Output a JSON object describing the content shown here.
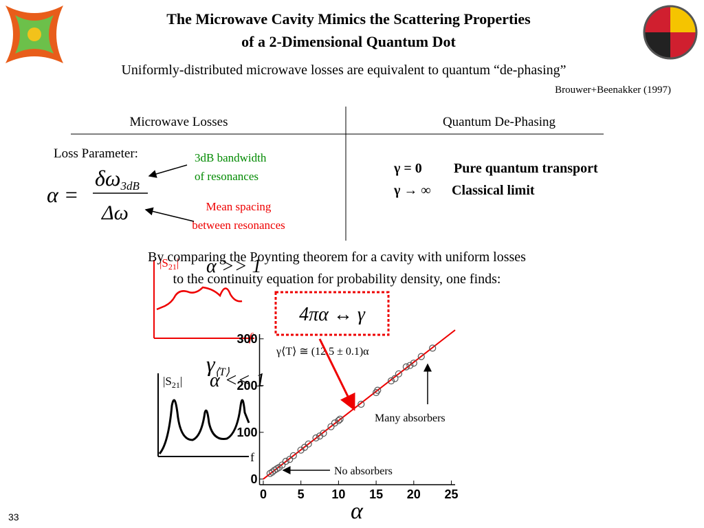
{
  "header": {
    "title": [
      "The Microwave Cavity Mimics the Scattering Properties",
      "of a 2-Dimensional Quantum Dot"
    ],
    "subtitle": "Uniformly-distributed microwave losses are equivalent to quantum “de-phasing”",
    "citation": "Brouwer+Beenakker (1997)"
  },
  "table": {
    "headers": [
      "Microwave Losses",
      "Quantum De-Phasing"
    ]
  },
  "loss_parameter": {
    "label": "Loss Parameter:",
    "lhs": "α =",
    "numerator": "δω",
    "numerator_sub": "3dB",
    "denominator": "Δω",
    "bandwidth_note": [
      "3dB bandwidth",
      "of resonances"
    ],
    "spacing_note": [
      "Mean spacing",
      "between resonances"
    ]
  },
  "dephasing": [
    {
      "condition": "γ = 0",
      "meaning": "Pure quantum transport"
    },
    {
      "condition": "γ → ∞",
      "meaning": "Classical limit"
    }
  ],
  "conclusion": [
    "By comparing the Poynting theorem for a cavity with uniform losses",
    "to the continuity equation for probability density, one finds:"
  ],
  "relation": "4πα ↔ γ",
  "spectra": [
    {
      "label": "|S",
      "label_sub": "21",
      "label_end": "|",
      "regime": "α >> 1",
      "axis": "f"
    },
    {
      "label": "|S",
      "label_sub": "21",
      "label_end": "|",
      "regime": "α << 1",
      "axis": "f"
    }
  ],
  "scatter": {
    "x": [
      0.9,
      1.2,
      1.5,
      1.8,
      2.1,
      2.5,
      3,
      3.5,
      4,
      5,
      5.5,
      6,
      7,
      7.5,
      8,
      9,
      9.5,
      10,
      10.2,
      13,
      15,
      15.2,
      17,
      17.5,
      18,
      19,
      19.5,
      20,
      21,
      22.5
    ],
    "y": [
      12,
      15,
      19,
      22,
      25,
      30,
      38,
      42,
      50,
      62,
      68,
      75,
      88,
      92,
      98,
      112,
      120,
      125,
      128,
      160,
      185,
      190,
      210,
      215,
      225,
      240,
      243,
      248,
      262,
      280
    ],
    "xlim": [
      -0.5,
      25.5
    ],
    "ylim": [
      -12,
      310
    ],
    "xticks": [
      0,
      5,
      10,
      15,
      20,
      25
    ],
    "yticks": [
      0,
      100,
      200,
      300
    ],
    "xlabel": "α",
    "ylabel": "γ",
    "ylabel_sub": "⟨T⟩",
    "fit_label": "γ⟨T⟩ ≅ (12.5 ± 0.1)α",
    "fit_slope": 12.5,
    "annotations": [
      "Many absorbers",
      "No absorbers"
    ]
  },
  "page_number": "33"
}
